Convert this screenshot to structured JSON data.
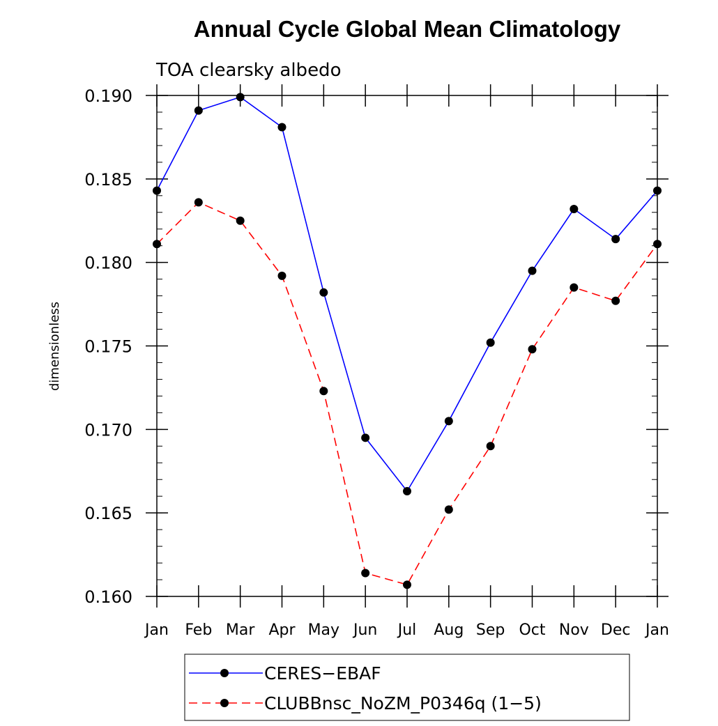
{
  "chart_data": {
    "type": "line",
    "title": "Annual Cycle Global Mean Climatology",
    "subtitle": "TOA clearsky albedo",
    "xlabel": "",
    "ylabel": "dimensionless",
    "categories": [
      "Jan",
      "Feb",
      "Mar",
      "Apr",
      "May",
      "Jun",
      "Jul",
      "Aug",
      "Sep",
      "Oct",
      "Nov",
      "Dec",
      "Jan"
    ],
    "ylim": [
      0.16,
      0.19
    ],
    "yticks": [
      "0.160",
      "0.165",
      "0.170",
      "0.175",
      "0.180",
      "0.185",
      "0.190"
    ],
    "ytick_values": [
      0.16,
      0.165,
      0.17,
      0.175,
      0.18,
      0.185,
      0.19
    ],
    "y_minor_step": 0.001,
    "grid": false,
    "legend_position": "bottom",
    "series": [
      {
        "name": "CERES−EBAF",
        "color": "#0000ff",
        "dash": "solid",
        "marker": "filled-circle",
        "values": [
          0.1843,
          0.1891,
          0.1899,
          0.1881,
          0.1782,
          0.1695,
          0.1663,
          0.1705,
          0.1752,
          0.1795,
          0.1832,
          0.1814,
          0.1843
        ]
      },
      {
        "name": "CLUBBnsc_NoZM_P0346q (1−5)",
        "color": "#ff0000",
        "dash": "dashed",
        "marker": "filled-circle",
        "values": [
          0.1811,
          0.1836,
          0.1825,
          0.1792,
          0.1723,
          0.1614,
          0.1607,
          0.1652,
          0.169,
          0.1748,
          0.1785,
          0.1777,
          0.1811
        ]
      }
    ]
  }
}
